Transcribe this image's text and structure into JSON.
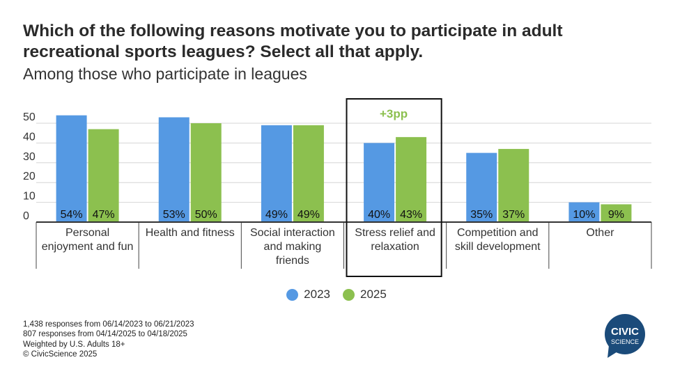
{
  "chart_data": {
    "type": "bar",
    "title": "Which of the following reasons motivate you to participate in adult recreational sports leagues? Select all that apply.",
    "subtitle": "Among those who participate in leagues",
    "categories": [
      [
        "Personal",
        "enjoyment and fun"
      ],
      [
        "Health and fitness"
      ],
      [
        "Social interaction",
        "and making",
        "friends"
      ],
      [
        "Stress relief and",
        "relaxation"
      ],
      [
        "Competition and",
        "skill development"
      ],
      [
        "Other"
      ]
    ],
    "series": [
      {
        "name": "2023",
        "color": "#5599e3",
        "values": [
          54,
          53,
          49,
          40,
          35,
          10
        ],
        "labels": [
          "54%",
          "53%",
          "49%",
          "40%",
          "35%",
          "10%"
        ]
      },
      {
        "name": "2025",
        "color": "#8cc04f",
        "values": [
          47,
          50,
          49,
          43,
          37,
          9
        ],
        "labels": [
          "47%",
          "50%",
          "49%",
          "43%",
          "37%",
          "9%"
        ]
      }
    ],
    "yticks": [
      "0",
      "10",
      "20",
      "30",
      "40",
      "50"
    ],
    "ylim": [
      0,
      56
    ],
    "grid": true,
    "legend": "bottom",
    "annotation": {
      "text": "+3pp",
      "category_index": 3,
      "color": "#8cc04f"
    }
  },
  "notes": [
    "1,438 responses from 06/14/2023 to 06/21/2023",
    "807 responses from 04/14/2025 to 04/18/2025",
    "Weighted by U.S. Adults 18+",
    "© CivicScience 2025"
  ],
  "logo": {
    "line1": "CIVIC",
    "line2": "SCIENCE",
    "color": "#1b4b7a"
  }
}
